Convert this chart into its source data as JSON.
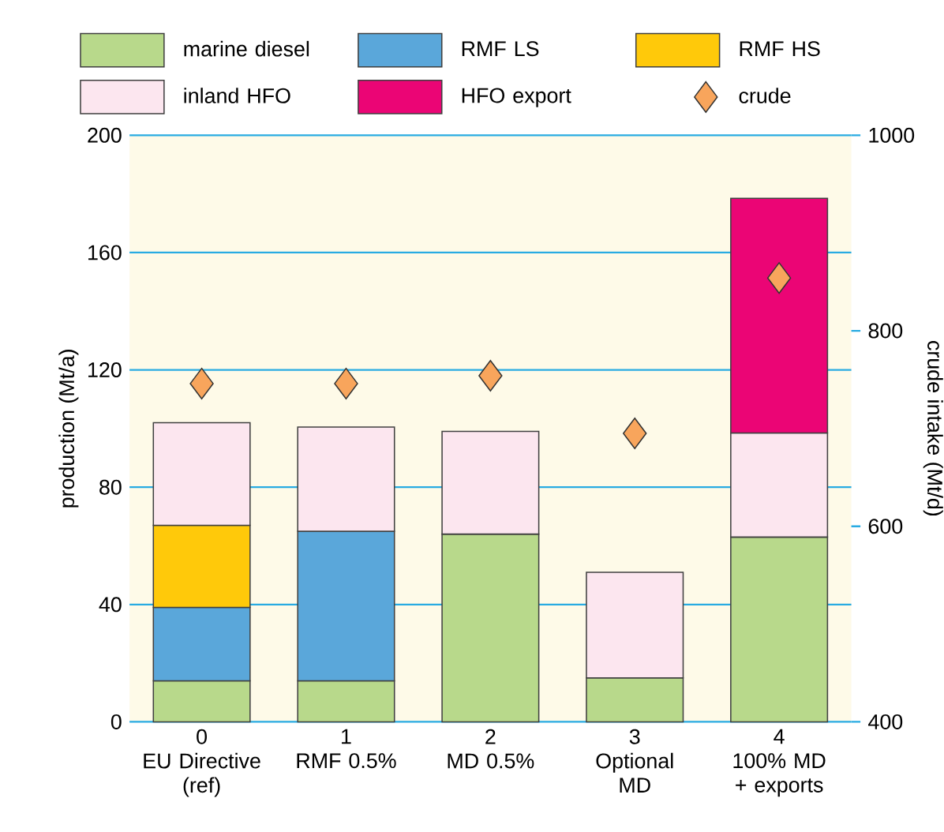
{
  "chart_data": {
    "type": "bar",
    "stacked": true,
    "categories": [
      "0\nEU Directive\n(ref)",
      "1\nRMF 0.5%",
      "2\nMD 0.5%",
      "3\nOptional\nMD",
      "4\n100% MD\n+ exports"
    ],
    "series": [
      {
        "name": "marine diesel",
        "color": "#b8d98b",
        "values": [
          14,
          14,
          64,
          15,
          63
        ]
      },
      {
        "name": "RMF LS",
        "color": "#5aa7da",
        "values": [
          25,
          51,
          null,
          null,
          null
        ]
      },
      {
        "name": "RMF HS",
        "color": "#ffc90a",
        "values": [
          28,
          null,
          null,
          null,
          null
        ]
      },
      {
        "name": "inland HFO",
        "color": "#fce6ef",
        "values": [
          35,
          35.5,
          35,
          36,
          35.5
        ]
      },
      {
        "name": "HFO export",
        "color": "#eb0575",
        "values": [
          null,
          null,
          null,
          null,
          80
        ]
      },
      {
        "name": "crude",
        "type": "scatter",
        "axis": "y2",
        "marker": "diamond",
        "color": "#f8a55c",
        "values": [
          746,
          746,
          754,
          695,
          854
        ]
      }
    ],
    "ylabel": "production (Mt/a)",
    "y2label": "crude intake (Mt/d)",
    "ylim": [
      0,
      200
    ],
    "yticks": [
      0,
      40,
      80,
      120,
      160,
      200
    ],
    "y2lim": [
      400,
      1000
    ],
    "y2ticks": [
      400,
      600,
      800,
      1000
    ],
    "grid": "y",
    "legend": "top"
  }
}
